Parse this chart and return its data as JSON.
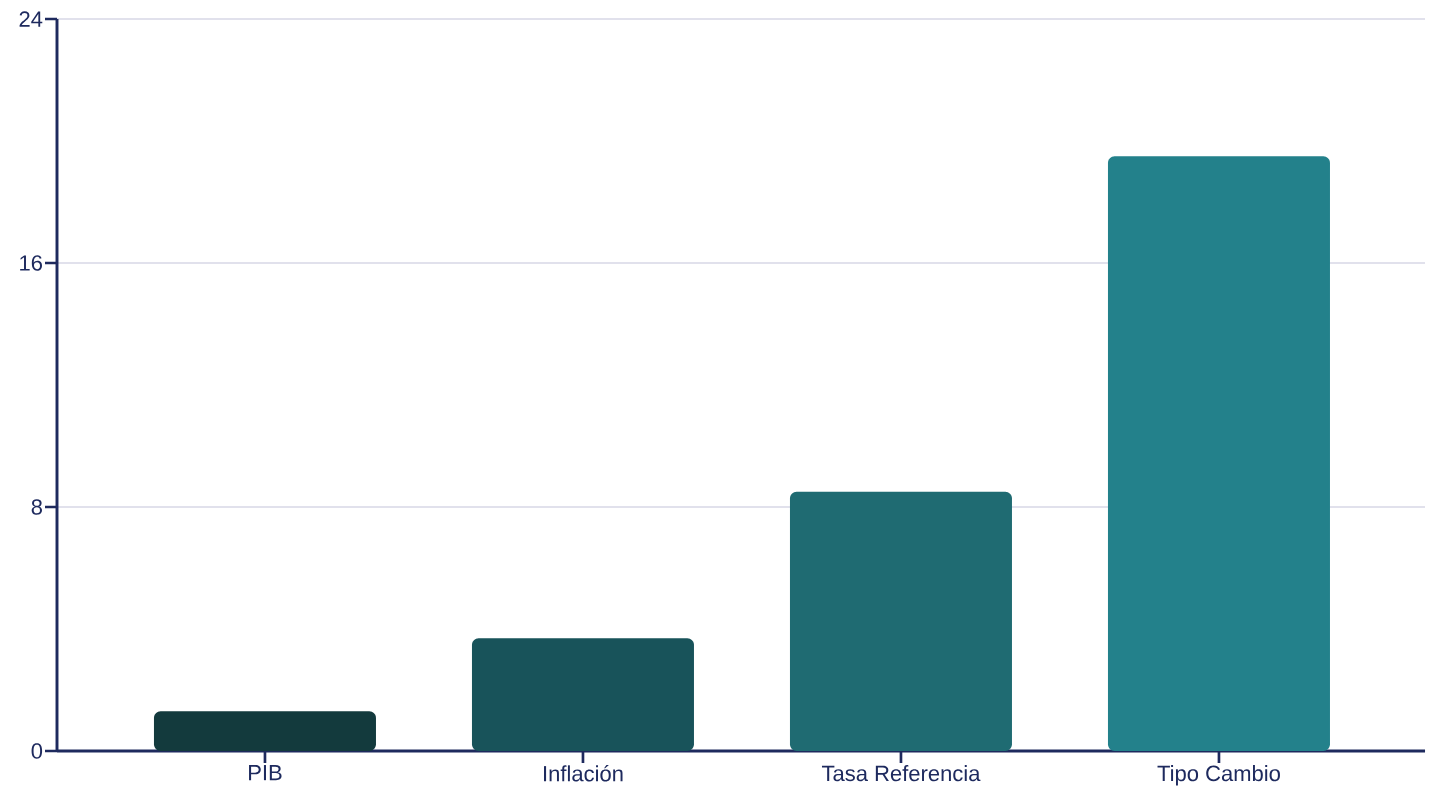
{
  "chart_data": {
    "type": "bar",
    "categories": [
      "PIB",
      "Inflación",
      "Tasa Referencia",
      "Tipo Cambio"
    ],
    "values": [
      1.3,
      3.7,
      8.5,
      19.5
    ],
    "colors": [
      "#133a3d",
      "#18535a",
      "#1f6b72",
      "#23818b"
    ],
    "ylim": [
      0,
      24
    ],
    "yticks": [
      0,
      8,
      16,
      24
    ],
    "grid": "y"
  }
}
